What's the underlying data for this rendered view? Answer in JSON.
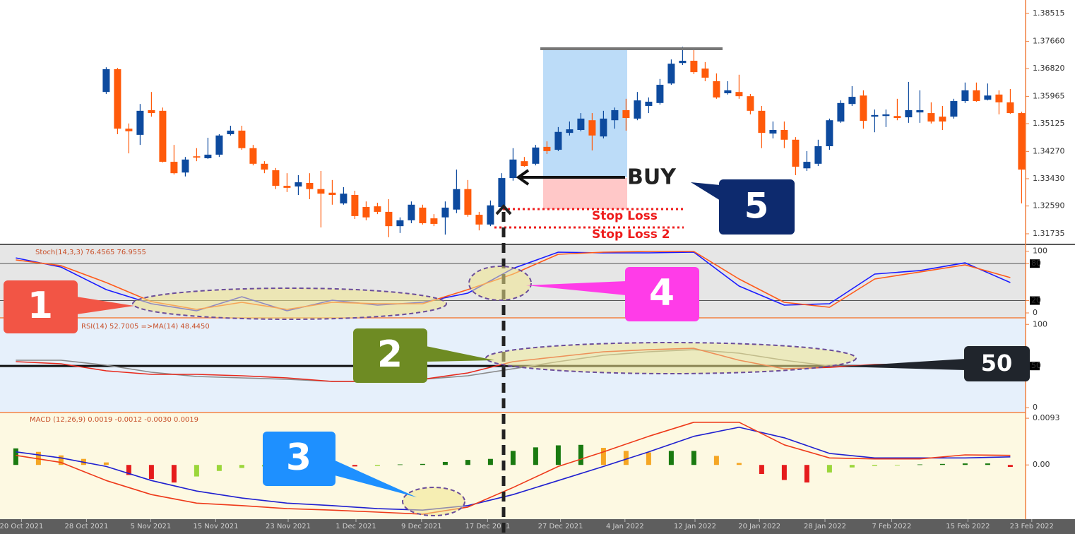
{
  "chart_data": [
    {
      "type": "candlestick",
      "xlim": [
        -9.4,
        81.35
      ],
      "ylim": [
        1.3143,
        1.3893
      ],
      "yticks": [
        1.38515,
        {
          "value": 1.3766,
          "label": "1.37660"
        },
        {
          "value": 1.3682,
          "label": "1.36820"
        },
        1.35965,
        1.35125,
        {
          "value": 1.3427,
          "label": "1.34270"
        },
        {
          "value": 1.3343,
          "label": "1.33430"
        },
        {
          "value": 1.3259,
          "label": "1.32590"
        },
        1.31735
      ],
      "colors": {
        "up": "#0d4a9e",
        "down": "#ff5a0a"
      },
      "open": [
        1.361,
        1.368,
        1.3497,
        1.3478,
        1.3554,
        1.3552,
        1.3395,
        1.3362,
        1.3412,
        1.3406,
        1.3417,
        1.348,
        1.3491,
        1.3437,
        1.3389,
        1.3369,
        1.3321,
        1.3319,
        1.333,
        1.3311,
        1.33,
        1.3267,
        1.3293,
        1.3256,
        1.3258,
        1.3241,
        1.3197,
        1.3215,
        1.3254,
        1.3221,
        1.3224,
        1.3248,
        1.3311,
        1.3232,
        1.3202,
        1.3256,
        1.3345,
        1.3397,
        1.3389,
        1.3441,
        1.3432,
        1.3484,
        1.3493,
        1.3523,
        1.3473,
        1.3523,
        1.3554,
        1.3528,
        1.3567,
        1.3576,
        1.3636,
        1.3699,
        1.3706,
        1.3682,
        1.3643,
        1.3606,
        1.361,
        1.3597,
        1.3552,
        1.3482,
        1.3493,
        1.3463,
        1.3375,
        1.3389,
        1.3443,
        1.3519,
        1.3573,
        1.3599,
        1.3534,
        1.3536,
        1.3536,
        1.3532,
        1.3547,
        1.3545,
        1.3534,
        1.3534,
        1.3582,
        1.3615,
        1.3586,
        1.3602,
        1.3578,
        1.3545
      ],
      "high": [
        1.3686,
        1.3684,
        1.3513,
        1.3573,
        1.361,
        1.3562,
        1.3447,
        1.341,
        1.3437,
        1.3469,
        1.348,
        1.3506,
        1.3506,
        1.3447,
        1.3397,
        1.3376,
        1.336,
        1.3354,
        1.336,
        1.3367,
        1.3339,
        1.3317,
        1.3306,
        1.3273,
        1.3269,
        1.328,
        1.3224,
        1.3273,
        1.3263,
        1.3234,
        1.3273,
        1.3371,
        1.3339,
        1.3241,
        1.3276,
        1.336,
        1.3437,
        1.341,
        1.3447,
        1.3458,
        1.3502,
        1.3519,
        1.3545,
        1.3545,
        1.3552,
        1.3562,
        1.3589,
        1.361,
        1.3593,
        1.365,
        1.371,
        1.3749,
        1.3741,
        1.3702,
        1.3667,
        1.3643,
        1.3663,
        1.3604,
        1.3567,
        1.3519,
        1.3519,
        1.3471,
        1.3428,
        1.3463,
        1.3528,
        1.3584,
        1.3628,
        1.3615,
        1.3556,
        1.3556,
        1.3589,
        1.3641,
        1.3615,
        1.3578,
        1.3567,
        1.3589,
        1.3639,
        1.3639,
        1.3636,
        1.3615,
        1.3619,
        1.3549
      ],
      "low": [
        1.3604,
        1.348,
        1.3421,
        1.3447,
        1.3534,
        1.3393,
        1.3356,
        1.335,
        1.3397,
        1.3404,
        1.341,
        1.3476,
        1.3432,
        1.3384,
        1.336,
        1.3311,
        1.3302,
        1.3293,
        1.328,
        1.3193,
        1.3263,
        1.3263,
        1.3219,
        1.3215,
        1.3234,
        1.3163,
        1.3176,
        1.3206,
        1.3202,
        1.3197,
        1.3171,
        1.3237,
        1.3226,
        1.3184,
        1.3197,
        1.325,
        1.3337,
        1.338,
        1.3384,
        1.3419,
        1.3428,
        1.3476,
        1.3489,
        1.343,
        1.3467,
        1.3497,
        1.3491,
        1.3523,
        1.3545,
        1.3571,
        1.3632,
        1.3693,
        1.3665,
        1.3643,
        1.3589,
        1.3602,
        1.3589,
        1.3541,
        1.3437,
        1.3467,
        1.3437,
        1.3354,
        1.3367,
        1.3382,
        1.3432,
        1.3515,
        1.3567,
        1.3497,
        1.3486,
        1.3502,
        1.3523,
        1.3515,
        1.3515,
        1.3513,
        1.3493,
        1.3528,
        1.3576,
        1.358,
        1.3584,
        1.3541,
        1.3543,
        1.3267
      ],
      "close": [
        1.368,
        1.3497,
        1.3489,
        1.3552,
        1.3545,
        1.3395,
        1.336,
        1.3402,
        1.3408,
        1.3417,
        1.3476,
        1.3491,
        1.3437,
        1.3389,
        1.3371,
        1.3321,
        1.3315,
        1.3332,
        1.3311,
        1.3297,
        1.3293,
        1.3297,
        1.3228,
        1.3224,
        1.3241,
        1.3197,
        1.3215,
        1.3263,
        1.3206,
        1.3204,
        1.3254,
        1.3311,
        1.3232,
        1.3202,
        1.3261,
        1.3345,
        1.3402,
        1.3382,
        1.3439,
        1.3428,
        1.3487,
        1.3495,
        1.3528,
        1.3476,
        1.3528,
        1.3554,
        1.353,
        1.3584,
        1.358,
        1.3632,
        1.3697,
        1.3706,
        1.3671,
        1.3654,
        1.3593,
        1.3615,
        1.3597,
        1.3552,
        1.3484,
        1.3493,
        1.3463,
        1.338,
        1.3395,
        1.3443,
        1.3523,
        1.3576,
        1.3595,
        1.3521,
        1.3539,
        1.3541,
        1.353,
        1.3554,
        1.3554,
        1.3519,
        1.3519,
        1.3582,
        1.3615,
        1.3582,
        1.3599,
        1.3578,
        1.3545,
        1.3371
      ],
      "annotations": [
        "BUY",
        "5",
        "Stop Loss",
        "Stop Loss 2"
      ]
    },
    {
      "type": "line",
      "title": "Stoch(14,3,3) 76.4565 76.9555",
      "xlim": [
        -9.4,
        81.35
      ],
      "ylim": [
        -8,
        110
      ],
      "yticks": [
        100,
        80,
        20,
        0
      ],
      "levels": [
        80,
        20
      ],
      "x": [
        -8,
        -4,
        0,
        4,
        8,
        12,
        16,
        20,
        24,
        28,
        32,
        36,
        40,
        44,
        48,
        52,
        56,
        60,
        64,
        68,
        72,
        76,
        80
      ],
      "series": [
        {
          "color": "#1a1aff",
          "values": [
            89.3,
            74.4,
            37.8,
            14.9,
            3.4,
            26.3,
            3.4,
            20.6,
            12.6,
            17.2,
            32.1,
            72.2,
            98.5,
            97.4,
            97.4,
            98.5,
            43.5,
            12.6,
            14.9,
            63.0,
            68.7,
            81.3,
            49.3
          ]
        },
        {
          "color": "#ff5a1a",
          "values": [
            85.9,
            76.7,
            49.3,
            18.3,
            5.7,
            17.2,
            5.7,
            17.2,
            14.9,
            14.9,
            37.8,
            63.0,
            95.1,
            98.5,
            99.7,
            99.7,
            55.0,
            17.2,
            9.2,
            55.0,
            66.4,
            77.9,
            57.3
          ]
        }
      ],
      "annotations": [
        "1",
        "4"
      ]
    },
    {
      "type": "line",
      "title": "RSI(14) 52.7005  =>MA(14) 48.4450",
      "xlim": [
        -9.4,
        81.35
      ],
      "ylim": [
        -5,
        107
      ],
      "yticks": [
        100,
        50,
        0
      ],
      "levels": [
        50
      ],
      "x": [
        -8,
        -4,
        0,
        4,
        8,
        12,
        16,
        20,
        24,
        28,
        32,
        36,
        40,
        44,
        48,
        52,
        56,
        60,
        64,
        68,
        72,
        76,
        80
      ],
      "series": [
        {
          "color": "#8a8a8a",
          "values": [
            56.9,
            56.9,
            51.0,
            42.5,
            37.4,
            35.7,
            34.0,
            31.5,
            31.5,
            34.0,
            38.3,
            46.7,
            55.2,
            62.9,
            67.1,
            69.6,
            65.4,
            56.9,
            50.1,
            50.1,
            51.0,
            51.0,
            51.0
          ]
        },
        {
          "color": "#e8291c",
          "values": [
            55.2,
            52.7,
            44.2,
            40.0,
            40.0,
            38.3,
            35.7,
            31.5,
            31.5,
            34.0,
            41.7,
            55.2,
            61.2,
            67.1,
            69.6,
            71.3,
            56.9,
            46.7,
            48.4,
            51.8,
            52.7,
            52.7,
            51.0
          ]
        }
      ],
      "annotations": [
        "2",
        "50"
      ]
    },
    {
      "type": "line",
      "title": "MACD (12,26,9) 0.0019 -0.0012 -0.0030 0.0019",
      "xlim": [
        -9.4,
        81.35
      ],
      "ylim": [
        -0.0108,
        0.0103
      ],
      "yticks": [
        0.0093,
        {
          "value": 0,
          "label": "0.00"
        }
      ],
      "x": [
        -8,
        -4,
        0,
        4,
        8,
        12,
        16,
        20,
        24,
        28,
        32,
        36,
        40,
        44,
        48,
        52,
        56,
        60,
        64,
        68,
        72,
        76,
        80
      ],
      "histogram": {
        "x": [
          -8,
          -6,
          -4,
          -2,
          0,
          2,
          4,
          6,
          8,
          10,
          12,
          14,
          16,
          18,
          20,
          22,
          24,
          26,
          28,
          30,
          32,
          34,
          36,
          38,
          40,
          42,
          44,
          46,
          48,
          50,
          52,
          54,
          56,
          58,
          60,
          62,
          64,
          66,
          68,
          70,
          72,
          74,
          76,
          78,
          80
        ],
        "values": [
          0.0033,
          0.0026,
          0.0019,
          0.0012,
          0.0005,
          -0.002,
          -0.0028,
          -0.0035,
          -0.0023,
          -0.0012,
          -0.0006,
          -0.0003,
          -0.0001,
          -0.0001,
          -0.0001,
          -0.0003,
          -0.0002,
          0.0001,
          0.0002,
          0.0006,
          0.001,
          0.0012,
          0.0028,
          0.0035,
          0.0039,
          0.004,
          0.0034,
          0.0028,
          0.0025,
          0.0028,
          0.0028,
          0.0018,
          0.0004,
          -0.0018,
          -0.003,
          -0.0035,
          -0.0015,
          -0.0005,
          -0.0002,
          -0.0001,
          0.0001,
          0.0002,
          0.0003,
          0.0003,
          -0.0004
        ]
      },
      "series": [
        {
          "color": "#2020d0",
          "values": [
            0.0026,
            0.0014,
            -0.0003,
            -0.0031,
            -0.0052,
            -0.0066,
            -0.0076,
            -0.0081,
            -0.0087,
            -0.009,
            -0.0081,
            -0.0059,
            -0.0031,
            -0.0003,
            0.0026,
            0.0057,
            0.0075,
            0.0054,
            0.0023,
            0.0014,
            0.0014,
            0.0014,
            0.0016
          ]
        },
        {
          "color": "#ee3a1a",
          "values": [
            0.0019,
            0.0005,
            -0.0031,
            -0.0059,
            -0.0076,
            -0.0081,
            -0.0087,
            -0.009,
            -0.0094,
            -0.0098,
            -0.0084,
            -0.0045,
            -0.0003,
            0.0026,
            0.0057,
            0.0085,
            0.0085,
            0.004,
            0.0014,
            0.0012,
            0.0012,
            0.002,
            0.0019
          ]
        }
      ],
      "xticks": [
        {
          "value": -7.5,
          "label": "20 Oct 2021"
        },
        {
          "value": -1.75,
          "label": "28 Oct 2021"
        },
        {
          "value": 3.94,
          "label": "5 Nov 2021"
        },
        {
          "value": 9.69,
          "label": "15 Nov 2021"
        },
        {
          "value": 16.1,
          "label": "23 Nov 2021"
        },
        {
          "value": 22.1,
          "label": "1 Dec 2021"
        },
        {
          "value": 27.9,
          "label": "9 Dec 2021"
        },
        {
          "value": 33.75,
          "label": "17 Dec 2021"
        },
        {
          "value": 40.2,
          "label": "27 Dec 2021"
        },
        {
          "value": 45.9,
          "label": "4 Jan 2022"
        },
        {
          "value": 52.1,
          "label": "12 Jan 2022"
        },
        {
          "value": 57.8,
          "label": "20 Jan 2022"
        },
        {
          "value": 63.6,
          "label": "28 Jan 2022"
        },
        {
          "value": 69.5,
          "label": "7 Feb 2022"
        },
        {
          "value": 76.25,
          "label": "15 Feb 2022"
        },
        {
          "value": 81.9,
          "label": "23 Feb 2022"
        }
      ],
      "annotations": [
        "3"
      ]
    }
  ]
}
